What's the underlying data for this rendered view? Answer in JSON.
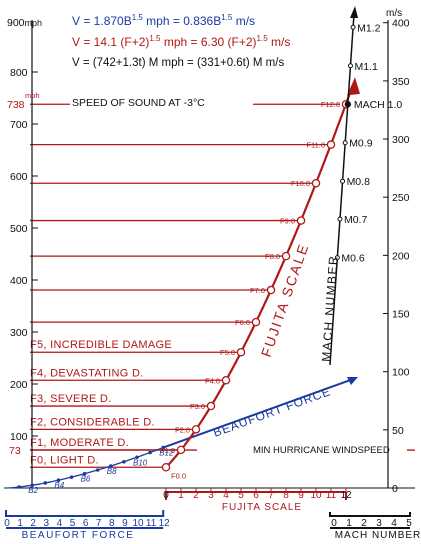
{
  "chart_data": {
    "type": "line",
    "formulas": [
      {
        "text_a": "V = 1.870B",
        "exp_a": "1.5",
        "text_b": " mph = 0.836B",
        "exp_b": "1.5",
        "text_c": " m/s",
        "color": "#1a3aa0"
      },
      {
        "text_a": "V = 14.1 (F+2)",
        "exp_a": "1.5",
        "text_b": " mph = 6.30 (F+2)",
        "exp_b": "1.5",
        "text_c": " m/s",
        "color": "#b01818"
      },
      {
        "text_a": "V = (742+1.3t) M mph = (331+0.6t) M m/s",
        "exp_a": "",
        "text_b": "",
        "exp_b": "",
        "text_c": "",
        "color": "#111111"
      }
    ],
    "left_axis": {
      "unit": "mph",
      "range": [
        0,
        900
      ],
      "ticks": [
        100,
        200,
        300,
        400,
        500,
        600,
        700,
        800
      ],
      "top_label": "900"
    },
    "right_axis": {
      "unit": "m/s",
      "range": [
        0,
        402
      ],
      "ticks": [
        0,
        50,
        100,
        150,
        200,
        250,
        300,
        350,
        400
      ]
    },
    "fujita_axis": {
      "title": "FUJITA SCALE",
      "ticks": [
        "0",
        "1",
        "2",
        "3",
        "4",
        "5",
        "6",
        "7",
        "8",
        "9",
        "10",
        "11",
        "12"
      ]
    },
    "beaufort_axis": {
      "title": "BEAUFORT FORCE",
      "ticks": [
        "0",
        "1",
        "2",
        "3",
        "4",
        "5",
        "6",
        "7",
        "8",
        "9",
        "10",
        "11",
        "12"
      ]
    },
    "mach_axis": {
      "title": "MACH NUMBER",
      "ticks": [
        "0",
        "1",
        "2",
        "3",
        "4",
        "5"
      ]
    },
    "fujita_curve": {
      "name": "FUJITA SCALE",
      "color": "#b01818",
      "points": [
        {
          "label": "F0.0",
          "f": 0,
          "v": 39.9
        },
        {
          "label": "F1.0",
          "f": 1,
          "v": 73.3
        },
        {
          "label": "F2.0",
          "f": 2,
          "v": 112.8
        },
        {
          "label": "F3.0",
          "f": 3,
          "v": 157.6
        },
        {
          "label": "F4.0",
          "f": 4,
          "v": 207.2
        },
        {
          "label": "F5.0",
          "f": 5,
          "v": 261.1
        },
        {
          "label": "F6.0",
          "f": 6,
          "v": 319.0
        },
        {
          "label": "F7.0",
          "f": 7,
          "v": 380.7
        },
        {
          "label": "F8.0",
          "f": 8,
          "v": 445.9
        },
        {
          "label": "F9.0",
          "f": 9,
          "v": 514.3
        },
        {
          "label": "F10.0",
          "f": 10,
          "v": 586.1
        },
        {
          "label": "F11.0",
          "f": 11,
          "v": 660.3
        },
        {
          "label": "F12.0",
          "f": 12,
          "v": 738
        }
      ]
    },
    "beaufort_curve": {
      "name": "BEAUFORT FORCE",
      "color": "#1a3aa0",
      "points": [
        {
          "b": 0,
          "v": 0
        },
        {
          "b": 2,
          "v": 5.3,
          "label": "B2"
        },
        {
          "b": 4,
          "v": 15,
          "label": "B4"
        },
        {
          "b": 6,
          "v": 27.5,
          "label": "B6"
        },
        {
          "b": 8,
          "v": 42.3,
          "label": "B8"
        },
        {
          "b": 10,
          "v": 59.1,
          "label": "B10"
        },
        {
          "b": 12,
          "v": 77.7,
          "label": "B12"
        }
      ],
      "arrow_end": {
        "b": 20,
        "v": 220
      }
    },
    "mach_line": {
      "name": "MACH NUMBER",
      "color": "#111111",
      "points": [
        {
          "label": "M0.6",
          "m": 0.6,
          "v": 443
        },
        {
          "label": "M0.7",
          "m": 0.7,
          "v": 517
        },
        {
          "label": "M0.8",
          "m": 0.8,
          "v": 590
        },
        {
          "label": "M0.9",
          "m": 0.9,
          "v": 664
        },
        {
          "label": "MACH 1.0",
          "m": 1.0,
          "v": 738
        },
        {
          "label": "M1.1",
          "m": 1.1,
          "v": 812
        },
        {
          "label": "M1.2",
          "m": 1.2,
          "v": 886
        }
      ]
    },
    "damage_levels": [
      {
        "label": "F0, LIGHT D.",
        "v": 39.9
      },
      {
        "label": "F1, MODERATE D.",
        "v": 73.3
      },
      {
        "label": "F2, CONSIDERABLE D.",
        "v": 112.8
      },
      {
        "label": "F3, SEVERE D.",
        "v": 157.6
      },
      {
        "label": "F4, DEVASTATING D.",
        "v": 207.2
      },
      {
        "label": "F5, INCREDIBLE DAMAGE",
        "v": 261.1
      },
      {
        "label": "",
        "v": 319.0
      },
      {
        "label": "",
        "v": 380.7
      },
      {
        "label": "",
        "v": 445.9
      },
      {
        "label": "",
        "v": 514.3
      },
      {
        "label": "",
        "v": 586.1
      },
      {
        "label": "",
        "v": 660.3
      }
    ],
    "reference_lines": [
      {
        "label": "SPEED OF SOUND AT -3°C",
        "v": 738,
        "marker": "738",
        "marker_unit": "mph"
      },
      {
        "label": "MIN HURRICANE WINDSPEED",
        "v": 73,
        "marker": "73",
        "marker_unit": ""
      }
    ]
  }
}
